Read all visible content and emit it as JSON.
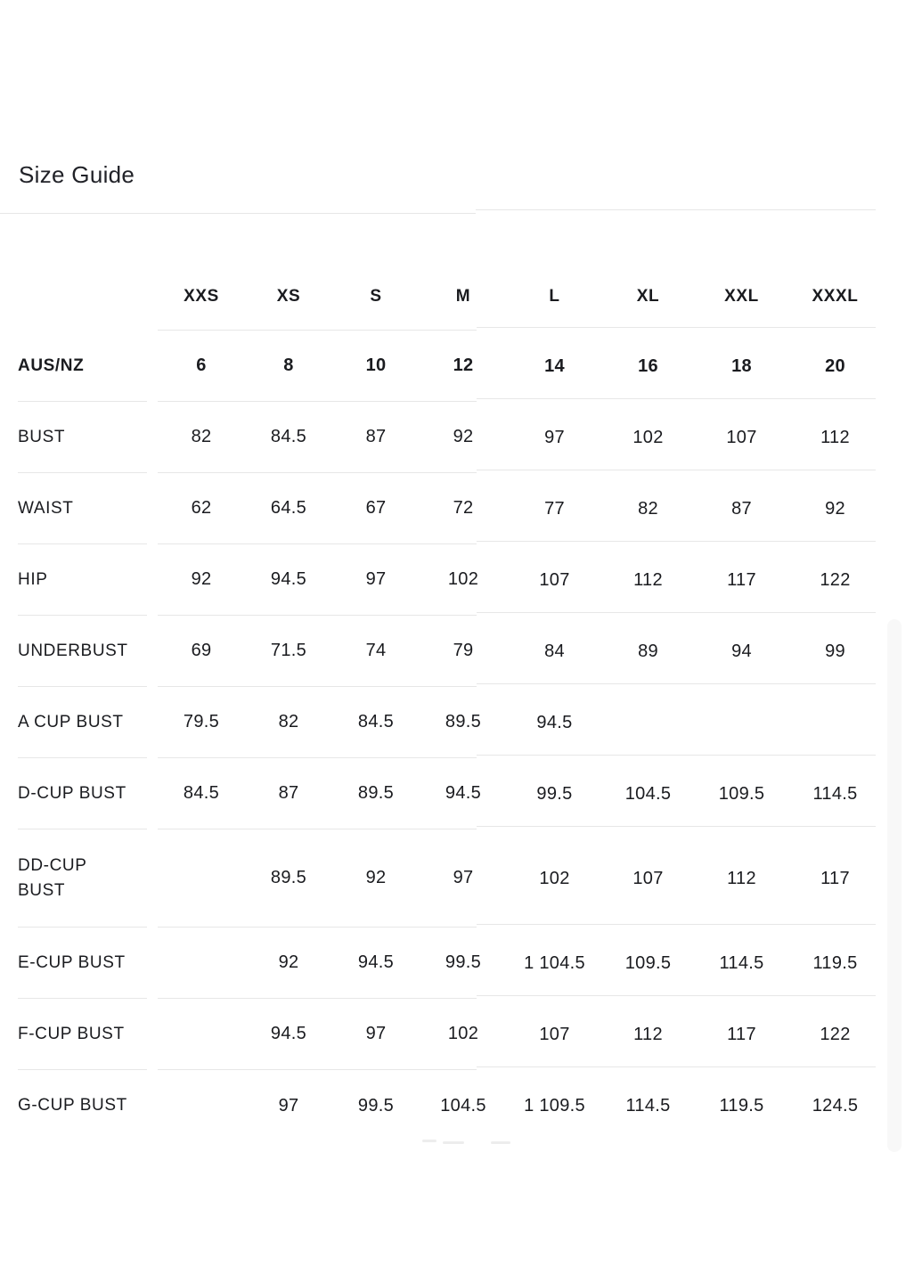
{
  "page": {
    "title": "Size Guide"
  },
  "size_table": {
    "column_headers": [
      "XXS",
      "XS",
      "S",
      "M",
      "L",
      "XL",
      "XXL",
      "XXXL"
    ],
    "rows": [
      {
        "label": "AUS/NZ",
        "emphasis": true,
        "values": [
          "6",
          "8",
          "10",
          "12",
          "14",
          "16",
          "18",
          "20"
        ]
      },
      {
        "label": "BUST",
        "emphasis": false,
        "values": [
          "82",
          "84.5",
          "87",
          "92",
          "97",
          "102",
          "107",
          "112"
        ]
      },
      {
        "label": "WAIST",
        "emphasis": false,
        "values": [
          "62",
          "64.5",
          "67",
          "72",
          "77",
          "82",
          "87",
          "92"
        ]
      },
      {
        "label": "HIP",
        "emphasis": false,
        "values": [
          "92",
          "94.5",
          "97",
          "102",
          "107",
          "112",
          "117",
          "122"
        ]
      },
      {
        "label": "UNDERBUST",
        "emphasis": false,
        "values": [
          "69",
          "71.5",
          "74",
          "79",
          "84",
          "89",
          "94",
          "99"
        ]
      },
      {
        "label": "A CUP BUST",
        "emphasis": false,
        "values": [
          "79.5",
          "82",
          "84.5",
          "89.5",
          "94.5",
          "",
          "",
          ""
        ]
      },
      {
        "label": "D-CUP BUST",
        "emphasis": false,
        "values": [
          "84.5",
          "87",
          "89.5",
          "94.5",
          "99.5",
          "104.5",
          "109.5",
          "114.5"
        ]
      },
      {
        "label": "DD-CUP\nBUST",
        "emphasis": false,
        "values": [
          "",
          "89.5",
          "92",
          "97",
          "102",
          "107",
          "112",
          "117"
        ]
      },
      {
        "label": "E-CUP BUST",
        "emphasis": false,
        "values": [
          "",
          "92",
          "94.5",
          "99.5",
          "1 104.5",
          "109.5",
          "114.5",
          "119.5"
        ]
      },
      {
        "label": "F-CUP BUST",
        "emphasis": false,
        "values": [
          "",
          "94.5",
          "97",
          "102",
          "107",
          "112",
          "117",
          "122"
        ]
      },
      {
        "label": "G-CUP BUST",
        "emphasis": false,
        "values": [
          "",
          "97",
          "99.5",
          "104.5",
          "1 109.5",
          "114.5",
          "119.5",
          "124.5"
        ]
      }
    ]
  },
  "colors": {
    "text": "#1a1b1f",
    "divider": "#e7e7e7",
    "background": "#ffffff"
  }
}
